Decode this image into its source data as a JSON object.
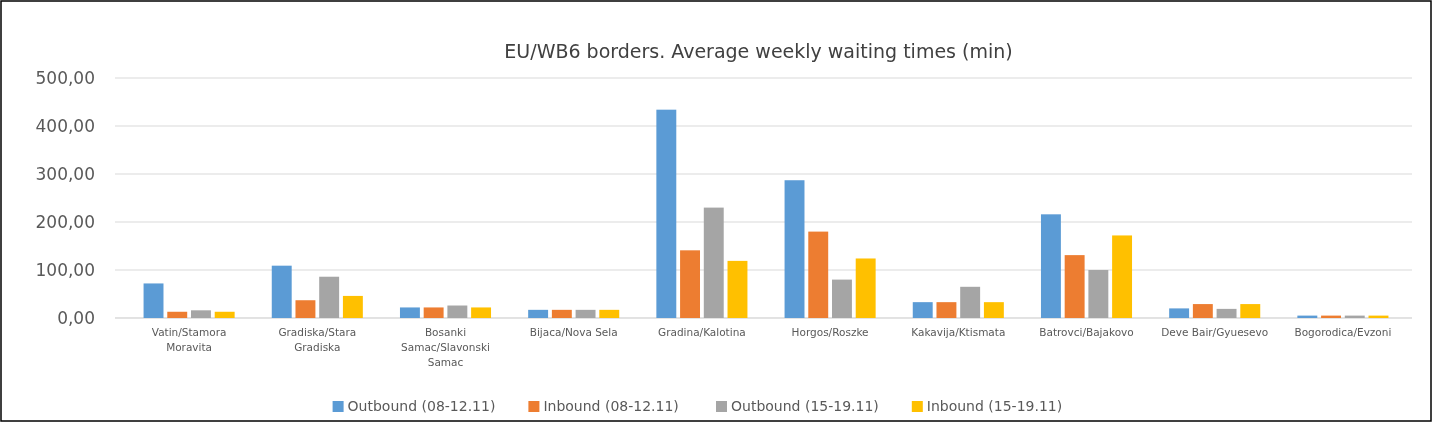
{
  "chart_data": {
    "type": "bar",
    "title": "EU/WB6 borders. Average weekly waiting times (min)",
    "categories": [
      "Vatin/Stamora Moravita",
      "Gradiska/Stara Gradiska",
      "Bosanki Samac/Slavonski Samac",
      "Bijaca/Nova Sela",
      "Gradina/Kalotina",
      "Horgos/Roszke",
      "Kakavija/Ktismata",
      "Batrovci/Bajakovo",
      "Deve Bair/Gyuesevo",
      "Bogorodica/Evzoni"
    ],
    "series": [
      {
        "name": "Outbound (08-12.11)",
        "color": "#5b9bd5",
        "values": [
          72,
          109,
          22,
          17,
          434,
          287,
          33,
          216,
          20,
          5
        ]
      },
      {
        "name": "Inbound (08-12.11)",
        "color": "#ed7d31",
        "values": [
          13,
          37,
          22,
          17,
          141,
          180,
          33,
          131,
          29,
          5
        ]
      },
      {
        "name": "Outbound (15-19.11)",
        "color": "#a5a5a5",
        "values": [
          16,
          86,
          26,
          17,
          230,
          80,
          65,
          100,
          19,
          5
        ]
      },
      {
        "name": "Inbound (15-19.11)",
        "color": "#ffc000",
        "values": [
          13,
          46,
          22,
          17,
          119,
          124,
          33,
          172,
          29,
          5
        ]
      }
    ],
    "ylim": [
      0,
      500
    ],
    "yticks": [
      {
        "value": 0,
        "label": "0,00"
      },
      {
        "value": 100,
        "label": "100,00"
      },
      {
        "value": 200,
        "label": "200,00"
      },
      {
        "value": 300,
        "label": "300,00"
      },
      {
        "value": 400,
        "label": "400,00"
      },
      {
        "value": 500,
        "label": "500,00"
      }
    ],
    "grid": "y",
    "legend": "bottom"
  }
}
